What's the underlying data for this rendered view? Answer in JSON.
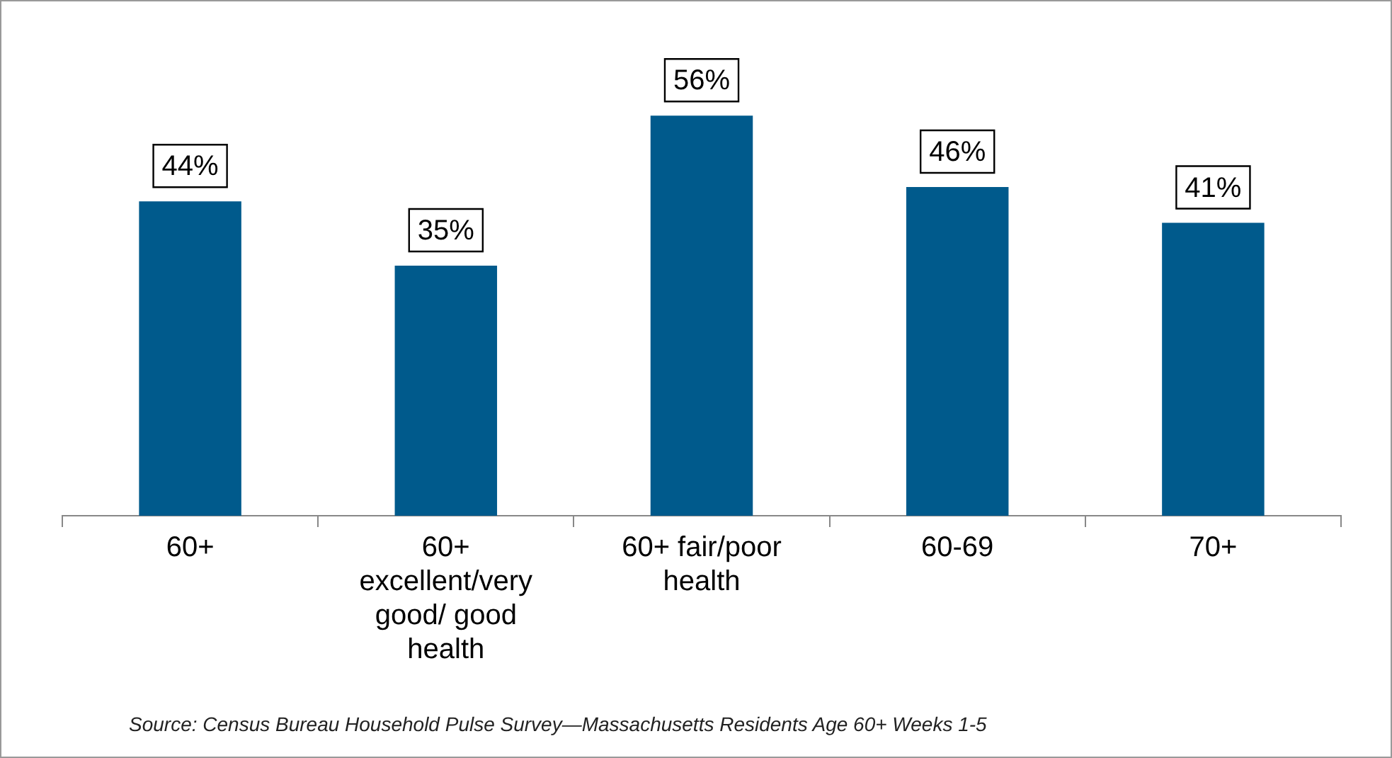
{
  "chart_data": {
    "type": "bar",
    "categories": [
      "60+",
      "60+ excellent/very good/ good health",
      "60+ fair/poor health",
      "60-69",
      "70+"
    ],
    "values": [
      44,
      35,
      56,
      46,
      41
    ],
    "value_labels": [
      "44%",
      "35%",
      "56%",
      "46%",
      "41%"
    ],
    "color": "#005a8c",
    "relative": false,
    "grid": false,
    "legend": false,
    "annotations": [
      "Source: Census Bureau Household Pulse Survey—Massachusetts Residents Age 60+ Weeks 1-5"
    ]
  }
}
